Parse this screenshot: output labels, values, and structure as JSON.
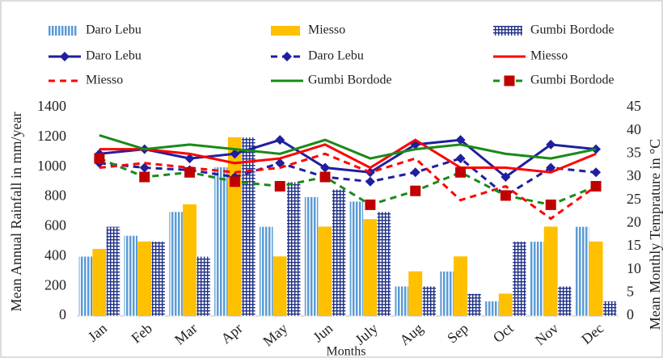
{
  "chart_data": {
    "type": "bar",
    "x_label": "Months",
    "y_label": "Mean Annual Rainfall  in mm/year",
    "y2_label": "Mean Monthly  Temprature in °C",
    "categories": [
      "Jan",
      "Feb",
      "Mar",
      "Apr",
      "May",
      "Jun",
      "July",
      "Aug",
      "Sep",
      "Oct",
      "Nov",
      "Dec"
    ],
    "ylim": [
      0,
      1400
    ],
    "yticks": [
      0,
      200,
      400,
      600,
      800,
      1000,
      1200,
      1400
    ],
    "y2lim": [
      0,
      45
    ],
    "y2ticks": [
      0,
      5,
      10,
      15,
      20,
      25,
      30,
      35,
      40,
      45
    ],
    "series": [
      {
        "name": "Daro Lebu",
        "type": "bar",
        "fill": "vertical-stripes",
        "color": "#5b9bd5",
        "values": [
          400,
          540,
          700,
          1000,
          600,
          800,
          770,
          200,
          300,
          100,
          500,
          600
        ]
      },
      {
        "name": "Miesso",
        "type": "bar",
        "fill": "solid",
        "color": "#ffc000",
        "values": [
          450,
          500,
          750,
          1200,
          400,
          600,
          650,
          300,
          400,
          150,
          600,
          500
        ]
      },
      {
        "name": "Gumbi Bordode",
        "type": "bar",
        "fill": "grid",
        "color": "#1f2f86",
        "values": [
          600,
          500,
          400,
          1200,
          900,
          850,
          700,
          200,
          150,
          500,
          200,
          100
        ]
      },
      {
        "name": "Daro Lebu",
        "type": "line",
        "axis": "y2",
        "dash": false,
        "marker": "diamond",
        "color": "#1f1f9f",
        "values": [
          35,
          36,
          34,
          35,
          38,
          32,
          31,
          37,
          38,
          30,
          37,
          36
        ]
      },
      {
        "name": "Daro Lebu",
        "type": "line",
        "axis": "y2",
        "dash": true,
        "marker": "diamond",
        "color": "#1f1f9f",
        "values": [
          33,
          32,
          31.5,
          30,
          33,
          30,
          29,
          31,
          34,
          26,
          32,
          31
        ]
      },
      {
        "name": "Miesso",
        "type": "line",
        "axis": "y2",
        "dash": false,
        "marker": null,
        "color": "#ff0000",
        "values": [
          36,
          36,
          35,
          33,
          34,
          37,
          32,
          38,
          32,
          32,
          31,
          35
        ]
      },
      {
        "name": "Miesso",
        "type": "line",
        "axis": "y2",
        "dash": true,
        "marker": null,
        "color": "#ff0000",
        "values": [
          32,
          33,
          32,
          31,
          32,
          35,
          31,
          34,
          25,
          28,
          21,
          28
        ]
      },
      {
        "name": "Gumbi Bordode",
        "type": "line",
        "axis": "y2",
        "dash": false,
        "marker": null,
        "color": "#1a8a1a",
        "values": [
          39,
          36,
          37,
          36,
          35,
          38,
          34,
          36,
          37,
          35,
          34,
          36
        ]
      },
      {
        "name": "Gumbi Bordode",
        "type": "line",
        "axis": "y2",
        "dash": true,
        "marker": "square",
        "marker_color": "#c00000",
        "color": "#1a8a1a",
        "values": [
          34,
          30,
          31,
          29,
          28,
          30,
          24,
          27,
          31,
          26,
          24,
          28
        ]
      }
    ]
  }
}
